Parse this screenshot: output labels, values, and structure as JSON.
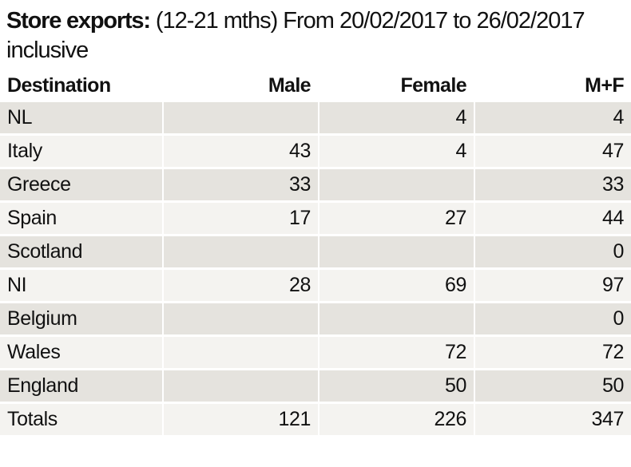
{
  "heading": {
    "bold": "Store exports:",
    "line1_rest": " (12-21 mths) From 20/02/2017 to 26/02/2017",
    "line2": "inclusive"
  },
  "chart_data": {
    "type": "table",
    "title": "Store exports: (12-21 mths) From 20/02/2017 to 26/02/2017 inclusive",
    "columns": [
      "Destination",
      "Male",
      "Female",
      "M+F"
    ],
    "rows": [
      [
        "NL",
        null,
        4,
        4
      ],
      [
        "Italy",
        43,
        4,
        47
      ],
      [
        "Greece",
        33,
        null,
        33
      ],
      [
        "Spain",
        17,
        27,
        44
      ],
      [
        "Scotland",
        null,
        null,
        0
      ],
      [
        "NI",
        28,
        69,
        97
      ],
      [
        "Belgium",
        null,
        null,
        0
      ],
      [
        "Wales",
        null,
        72,
        72
      ],
      [
        "England",
        null,
        50,
        50
      ],
      [
        "Totals",
        121,
        226,
        347
      ]
    ]
  },
  "colors": {
    "background": "#ffffff",
    "row_light": "#f4f3f0",
    "row_dark": "#e5e3de",
    "text": "#111111"
  }
}
